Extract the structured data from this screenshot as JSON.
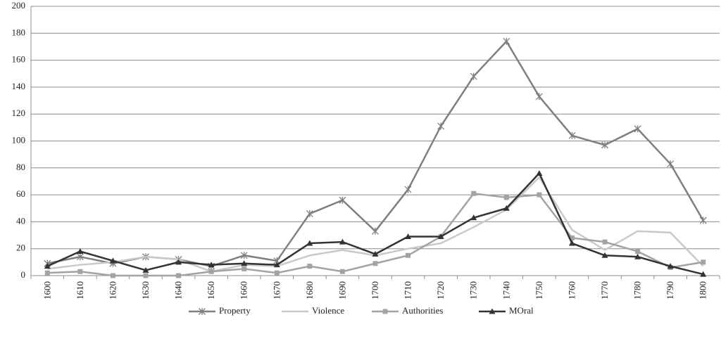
{
  "chart_data": {
    "type": "line",
    "categories": [
      "1600",
      "1610",
      "1620",
      "1630",
      "1640",
      "1650",
      "1660",
      "1670",
      "1680",
      "1690",
      "1700",
      "1710",
      "1720",
      "1730",
      "1740",
      "1750",
      "1760",
      "1770",
      "1780",
      "1790",
      "1800"
    ],
    "series": [
      {
        "name": "Property",
        "color": "#7f7f7f",
        "marker": "star",
        "values": [
          9,
          14,
          9,
          14,
          12,
          7,
          15,
          11,
          46,
          56,
          33,
          64,
          111,
          148,
          174,
          133,
          104,
          97,
          109,
          83,
          41
        ]
      },
      {
        "name": "Violence",
        "color": "#c9c9c9",
        "marker": "none",
        "values": [
          5,
          8,
          10,
          14,
          12,
          3,
          8,
          7,
          15,
          19,
          15,
          20,
          24,
          36,
          49,
          73,
          34,
          19,
          33,
          32,
          7
        ]
      },
      {
        "name": "Authorities",
        "color": "#a3a3a3",
        "marker": "square",
        "values": [
          2,
          3,
          0,
          0,
          0,
          3,
          5,
          2,
          7,
          3,
          9,
          15,
          29,
          61,
          58,
          60,
          28,
          25,
          18,
          6,
          10
        ]
      },
      {
        "name": "MOral",
        "color": "#333333",
        "marker": "triangle",
        "values": [
          7,
          18,
          11,
          4,
          10,
          8,
          9,
          8,
          24,
          25,
          16,
          29,
          29,
          43,
          50,
          76,
          24,
          15,
          14,
          7,
          1
        ]
      }
    ],
    "ylim": [
      0,
      200
    ],
    "yticks": [
      0,
      20,
      40,
      60,
      80,
      100,
      120,
      140,
      160,
      180,
      200
    ],
    "grid": true,
    "legend": "bottom"
  }
}
